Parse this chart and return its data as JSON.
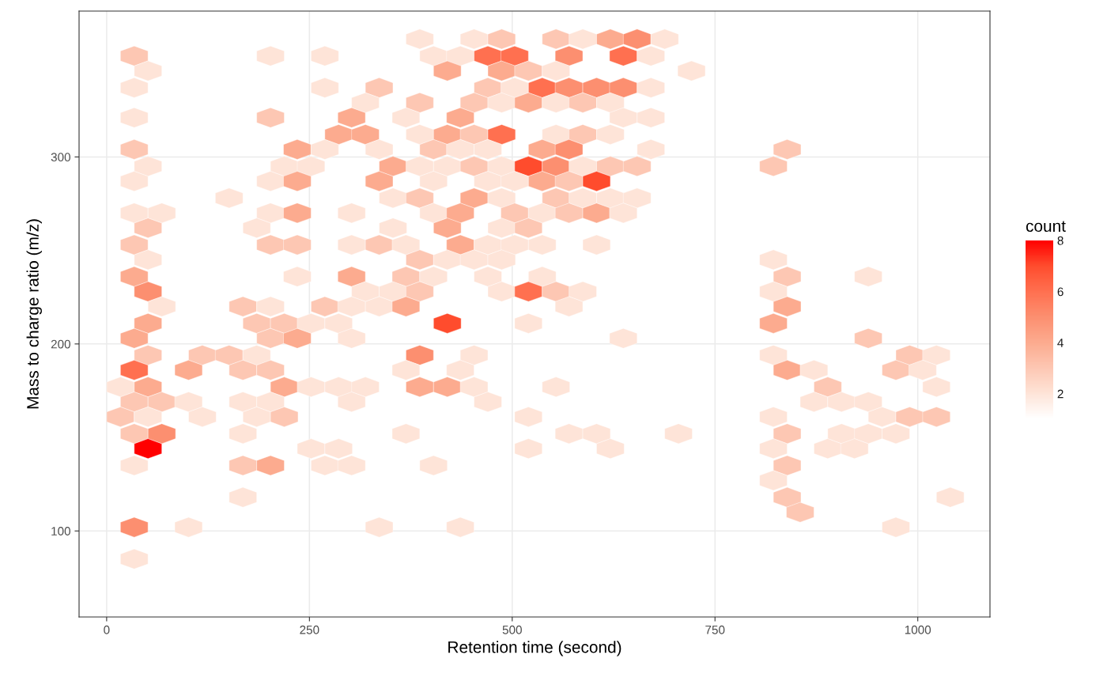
{
  "chart_data": {
    "type": "scatter",
    "xlabel": "Retention time (second)",
    "ylabel": "Mass to charge ratio (m/z)",
    "clabel": "count",
    "xlim": [
      -34,
      1089
    ],
    "xticks": [
      0,
      250,
      500,
      750,
      1000
    ],
    "ylim": [
      54,
      378
    ],
    "yticks": [
      100,
      200,
      300
    ],
    "clim": [
      1,
      8
    ],
    "cticks": [
      2,
      4,
      6,
      8
    ],
    "grid": true,
    "series": [
      {
        "x": [
          386,
          453,
          487,
          554,
          587,
          621,
          654,
          688,
          34,
          202,
          269,
          403,
          436,
          470,
          503,
          570,
          637,
          671,
          51,
          420,
          487,
          520,
          554,
          721,
          34,
          269,
          336,
          470,
          503,
          537,
          570,
          604,
          637,
          671,
          319,
          386,
          453,
          487,
          520,
          554,
          587,
          621,
          34,
          202,
          302,
          369,
          436,
          637,
          671,
          286,
          319,
          386,
          420,
          453,
          487,
          554,
          587,
          621,
          34,
          235,
          269,
          336,
          403,
          436,
          470,
          537,
          570,
          671,
          839,
          51,
          219,
          252,
          353,
          386,
          420,
          453,
          487,
          520,
          554,
          587,
          621,
          654,
          822,
          34,
          202,
          235,
          336,
          403,
          470,
          503,
          537,
          570,
          604,
          151,
          353,
          386,
          453,
          487,
          554,
          587,
          621,
          654,
          34,
          68,
          202,
          235,
          302,
          403,
          436,
          503,
          537,
          570,
          604,
          637,
          51,
          185,
          353,
          420,
          487,
          520,
          34,
          202,
          235,
          302,
          336,
          369,
          436,
          470,
          503,
          537,
          604,
          51,
          386,
          420,
          453,
          487,
          822,
          34,
          235,
          302,
          369,
          403,
          470,
          537,
          839,
          939,
          51,
          319,
          353,
          386,
          487,
          520,
          554,
          587,
          822,
          68,
          168,
          202,
          269,
          302,
          336,
          369,
          570,
          839,
          51,
          185,
          219,
          252,
          286,
          420,
          520,
          822,
          34,
          202,
          235,
          302,
          637,
          939,
          51,
          118,
          151,
          185,
          386,
          453,
          822,
          990,
          1023,
          34,
          101,
          168,
          202,
          369,
          436,
          839,
          872,
          973,
          1006,
          17,
          51,
          219,
          252,
          286,
          319,
          386,
          420,
          453,
          554,
          889,
          1023,
          34,
          68,
          101,
          168,
          202,
          302,
          470,
          872,
          906,
          939,
          17,
          51,
          118,
          185,
          219,
          520,
          822,
          956,
          990,
          1023,
          34,
          68,
          168,
          369,
          570,
          604,
          705,
          839,
          906,
          939,
          973,
          51,
          252,
          286,
          520,
          621,
          822,
          889,
          922,
          34,
          168,
          202,
          269,
          302,
          403,
          839,
          822,
          168,
          839,
          1040,
          855,
          34,
          101,
          336,
          436,
          973,
          34
        ],
        "values": [
          363,
          363,
          363,
          363,
          363,
          363,
          363,
          363,
          354,
          354,
          354,
          354,
          354,
          354,
          354,
          354,
          354,
          354,
          346,
          346,
          346,
          346,
          346,
          346,
          337,
          337,
          337,
          337,
          337,
          337,
          337,
          337,
          337,
          337,
          329,
          329,
          329,
          329,
          329,
          329,
          329,
          329,
          321,
          321,
          321,
          321,
          321,
          321,
          321,
          312,
          312,
          312,
          312,
          312,
          312,
          312,
          312,
          312,
          304,
          304,
          304,
          304,
          304,
          304,
          304,
          304,
          304,
          304,
          304,
          295,
          295,
          295,
          295,
          295,
          295,
          295,
          295,
          295,
          295,
          295,
          295,
          295,
          295,
          287,
          287,
          287,
          287,
          287,
          287,
          287,
          287,
          287,
          287,
          278,
          278,
          278,
          278,
          278,
          278,
          278,
          278,
          278,
          270,
          270,
          270,
          270,
          270,
          270,
          270,
          270,
          270,
          270,
          270,
          270,
          262,
          262,
          262,
          262,
          262,
          262,
          253,
          253,
          253,
          253,
          253,
          253,
          253,
          253,
          253,
          253,
          253,
          245,
          245,
          245,
          245,
          245,
          245,
          236,
          236,
          236,
          236,
          236,
          236,
          236,
          236,
          236,
          228,
          228,
          228,
          228,
          228,
          228,
          228,
          228,
          228,
          220,
          220,
          220,
          220,
          220,
          220,
          220,
          220,
          220,
          211,
          211,
          211,
          211,
          211,
          211,
          211,
          211,
          203,
          203,
          203,
          203,
          203,
          203,
          194,
          194,
          194,
          194,
          194,
          194,
          194,
          194,
          194,
          186,
          186,
          186,
          186,
          186,
          186,
          186,
          186,
          186,
          186,
          177,
          177,
          177,
          177,
          177,
          177,
          177,
          177,
          177,
          177,
          177,
          177,
          169,
          169,
          169,
          169,
          169,
          169,
          169,
          169,
          169,
          169,
          161,
          161,
          161,
          161,
          161,
          161,
          161,
          161,
          161,
          161,
          152,
          152,
          152,
          152,
          152,
          152,
          152,
          152,
          152,
          152,
          152,
          144,
          144,
          144,
          144,
          144,
          144,
          144,
          144,
          135,
          135,
          135,
          135,
          135,
          135,
          135,
          127,
          118,
          118,
          118,
          110,
          102,
          102,
          102,
          102,
          102,
          85
        ],
        "cvalues": [
          2,
          2,
          3,
          3,
          2,
          4,
          5,
          2,
          3,
          2,
          2,
          2,
          2,
          6,
          6,
          5,
          6,
          2,
          2,
          4,
          4,
          3,
          2,
          2,
          2,
          2,
          3,
          3,
          2,
          6,
          5,
          5,
          5,
          2,
          2,
          3,
          3,
          2,
          4,
          2,
          3,
          2,
          2,
          3,
          4,
          2,
          4,
          2,
          2,
          4,
          4,
          2,
          4,
          3,
          6,
          2,
          3,
          2,
          3,
          4,
          2,
          2,
          3,
          2,
          2,
          4,
          5,
          2,
          3,
          2,
          2,
          2,
          4,
          2,
          2,
          3,
          2,
          7,
          5,
          2,
          3,
          3,
          3,
          2,
          2,
          4,
          4,
          2,
          2,
          2,
          4,
          3,
          7,
          2,
          2,
          3,
          4,
          2,
          3,
          2,
          2,
          2,
          2,
          2,
          2,
          4,
          2,
          2,
          4,
          3,
          2,
          3,
          4,
          2,
          3,
          2,
          2,
          4,
          2,
          3,
          3,
          3,
          3,
          2,
          3,
          2,
          4,
          2,
          2,
          2,
          2,
          2,
          3,
          2,
          2,
          2,
          2,
          4,
          2,
          4,
          3,
          2,
          2,
          2,
          3,
          2,
          5,
          2,
          2,
          3,
          2,
          6,
          3,
          2,
          2,
          2,
          3,
          2,
          3,
          2,
          2,
          4,
          2,
          4,
          4,
          3,
          3,
          2,
          2,
          7,
          2,
          4,
          4,
          3,
          4,
          2,
          2,
          3,
          3,
          3,
          3,
          2,
          5,
          2,
          2,
          3,
          2,
          6,
          4,
          3,
          3,
          2,
          2,
          4,
          2,
          3,
          2,
          2,
          4,
          4,
          2,
          2,
          2,
          4,
          4,
          2,
          2,
          3,
          2,
          3,
          3,
          2,
          2,
          2,
          2,
          2,
          2,
          2,
          2,
          3,
          2,
          2,
          2,
          3,
          2,
          2,
          2,
          3,
          3,
          3,
          5,
          2,
          2,
          2,
          2,
          2,
          3,
          2,
          2,
          2,
          8,
          2,
          2,
          2,
          2,
          2,
          2,
          2,
          2,
          3,
          4,
          2,
          2,
          2,
          3,
          2,
          2,
          3,
          2,
          3,
          5,
          2,
          2,
          2,
          2,
          2
        ]
      }
    ]
  }
}
